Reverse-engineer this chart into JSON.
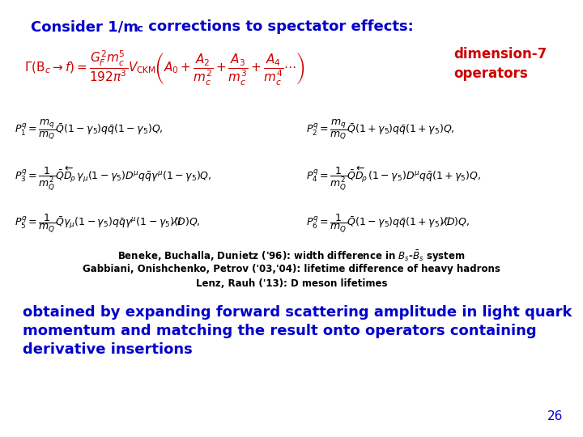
{
  "blue": "#0000CC",
  "red": "#CC0000",
  "black": "#000000",
  "bg_color": "#FFFFFF",
  "title": "Consider 1/m",
  "title_sub": "c",
  "title_rest": " corrections to spectator effects:",
  "dim7": "dimension-7\noperators",
  "formula": "$\\Gamma(\\mathrm{B}_c \\rightarrow f) = \\dfrac{G_F^2 m_c^5}{192\\pi^3} V_{\\mathrm{CKM}}\\left(A_0 + \\dfrac{A_2}{m_c^2} + \\dfrac{A_3}{m_c^3} + \\dfrac{A_4}{m_c^4}\\cdots\\right)$",
  "p1": "$P_1^q = \\dfrac{m_q}{m_Q}\\bar{Q}(1-\\gamma_5)q\\bar{q}(1-\\gamma_5)Q,$",
  "p2": "$P_2^q = \\dfrac{m_q}{m_Q}\\bar{Q}(1+\\gamma_5)q\\bar{q}(1+\\gamma_5)Q,$",
  "p3": "$P_3^q = \\dfrac{1}{m_Q^2}\\bar{Q}\\overleftarrow{D}_{\\rho}\\,\\gamma_{\\mu}(1-\\gamma_5)D^{\\mu}q\\bar{q}\\gamma^{\\mu}(1-\\gamma_5)Q,$",
  "p4": "$P_4^q = \\dfrac{1}{m_Q^2}\\bar{Q}\\overleftarrow{D}_{\\rho}\\,(1-\\gamma_5)D^{\\mu}q\\bar{q}(1+\\gamma_5)Q,$",
  "p5": "$P_5^q = \\dfrac{1}{m_Q}\\bar{Q}\\gamma_{\\mu}(1-\\gamma_5)q\\bar{q}\\gamma^{\\mu}(1-\\gamma_5)(i\\not\\!D)Q,$",
  "p6": "$P_6^q = \\dfrac{1}{m_Q}\\bar{Q}(1-\\gamma_5)q\\bar{q}(1+\\gamma_5)(i\\not\\!D)Q,$",
  "ref1": "Beneke, Buchalla, Dunietz ('96): width difference in $B_s$-$\\underline{B}_s$ system",
  "ref2": "Gabbiani, Onishchenko, Petrov ('03,'04): lifetime difference of heavy hadrons",
  "ref3": "Lenz, Rauh ('13): D meson lifetimes",
  "body1": "obtained by expanding forward scattering amplitude in light quark",
  "body2": "momentum and matching the result onto operators containing",
  "body3": "derivative insertions",
  "page": "26"
}
